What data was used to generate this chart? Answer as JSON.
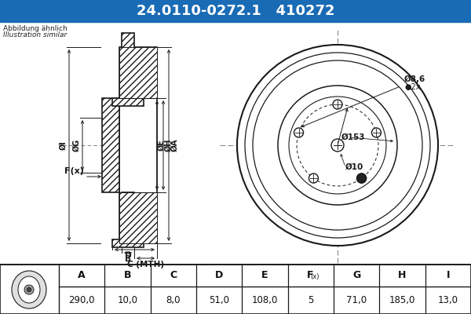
{
  "title_text": "24.0110-0272.1   410272",
  "title_bg": "#1a6bb5",
  "title_color": "#ffffff",
  "subtitle1": "Abbildung ähnlich",
  "subtitle2": "Illustration similar",
  "bg_color": "#cde0f0",
  "diagram_bg": "#ffffff",
  "table_headers": [
    "A",
    "B",
    "C",
    "D",
    "E",
    "F(x)",
    "G",
    "H",
    "I"
  ],
  "table_values": [
    "290,0",
    "10,0",
    "8,0",
    "51,0",
    "108,0",
    "5",
    "71,0",
    "185,0",
    "13,0"
  ]
}
